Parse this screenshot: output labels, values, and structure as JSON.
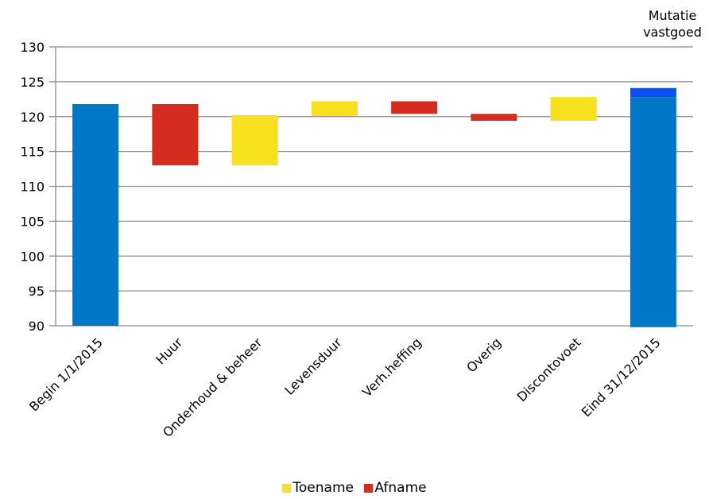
{
  "chart_data": {
    "type": "bar",
    "subtype": "waterfall",
    "categories": [
      "Begin 1/1/2015",
      "Huur",
      "Onderhoud & beheer",
      "Levensduur",
      "Verh.heffing",
      "Overig",
      "Discontovoet",
      "Eind 31/12/2015"
    ],
    "bars": [
      {
        "category": "Begin 1/1/2015",
        "kind": "total",
        "from": 90,
        "to": 121.8
      },
      {
        "category": "Huur",
        "kind": "decrease",
        "from": 121.8,
        "to": 113
      },
      {
        "category": "Onderhoud & beheer",
        "kind": "increase",
        "from": 113,
        "to": 120.2
      },
      {
        "category": "Levensduur",
        "kind": "increase",
        "from": 120.1,
        "to": 122.2
      },
      {
        "category": "Verh.heffing",
        "kind": "decrease",
        "from": 122.2,
        "to": 120.4
      },
      {
        "category": "Overig",
        "kind": "decrease",
        "from": 120.4,
        "to": 119.4
      },
      {
        "category": "Discontovoet",
        "kind": "increase",
        "from": 119.4,
        "to": 122.8
      },
      {
        "category": "Eind 31/12/2015",
        "kind": "total",
        "from": 89.8,
        "to": 122.8,
        "extra_from": 122.8,
        "extra_to": 124.1
      }
    ],
    "ylim": [
      90,
      130
    ],
    "yticks": [
      90,
      95,
      100,
      105,
      110,
      115,
      120,
      125,
      130
    ],
    "grid": true,
    "annotation": [
      "Mutatie",
      "vastgoed"
    ],
    "legend": [
      {
        "name": "Toename",
        "color": "#f7e01e"
      },
      {
        "name": "Afname",
        "color": "#d62b1f"
      }
    ],
    "colors": {
      "total": "#0078c8",
      "increase": "#f7e01e",
      "decrease": "#d62b1f",
      "mutation": "#0b50f5"
    }
  }
}
